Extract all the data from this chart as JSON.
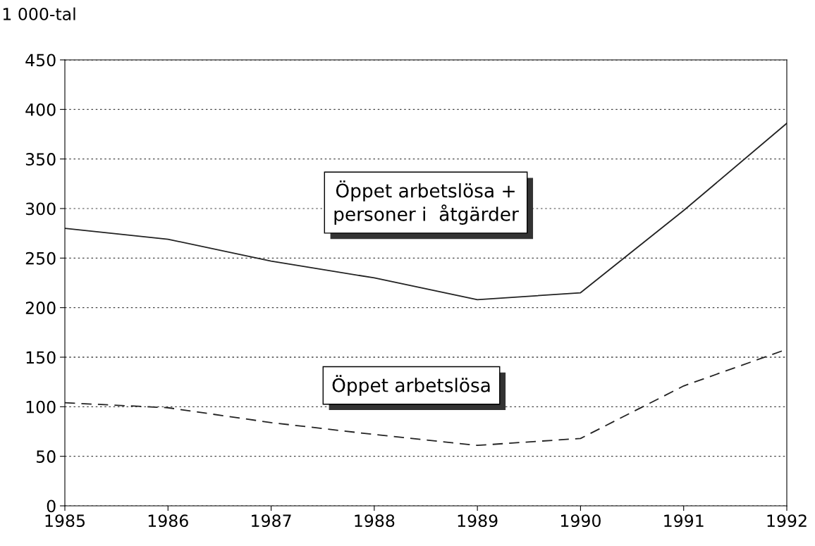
{
  "chart_data": {
    "type": "line",
    "ylabel": "1 000-tal",
    "x": [
      1985,
      1986,
      1987,
      1988,
      1989,
      1990,
      1991,
      1992
    ],
    "series": [
      {
        "name": "Öppet arbetslösa +\npersoner i  åtgärder",
        "color": "#222222",
        "line_style": "solid",
        "values": [
          280,
          269,
          247,
          230,
          208,
          215,
          298,
          386
        ]
      },
      {
        "name": "Öppet arbetslösa",
        "color": "#222222",
        "line_style": "dashed",
        "values": [
          104,
          99,
          84,
          72,
          61,
          68,
          121,
          158
        ]
      }
    ],
    "xlim": [
      1985,
      1992
    ],
    "xticks": [
      1985,
      1986,
      1987,
      1988,
      1989,
      1990,
      1991,
      1992
    ],
    "ylim": [
      0,
      450
    ],
    "yticks": [
      0,
      50,
      100,
      150,
      200,
      250,
      300,
      350,
      400,
      450
    ],
    "grid": "y",
    "legend": false,
    "marker": "none"
  }
}
